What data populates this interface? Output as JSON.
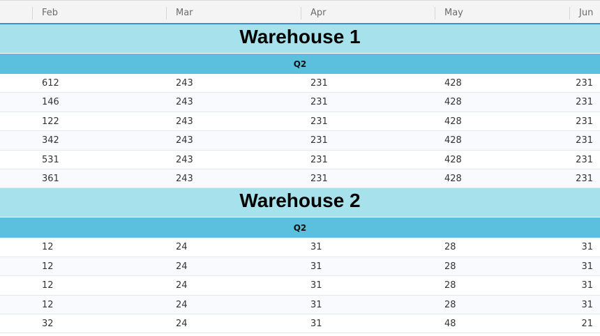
{
  "columns": [
    "Feb",
    "Mar",
    "Apr",
    "May",
    "Jun"
  ],
  "groups": [
    {
      "title": "Warehouse 1",
      "quarter": "Q2",
      "rows": [
        [
          "612",
          "243",
          "231",
          "428",
          "231"
        ],
        [
          "146",
          "243",
          "231",
          "428",
          "231"
        ],
        [
          "122",
          "243",
          "231",
          "428",
          "231"
        ],
        [
          "342",
          "243",
          "231",
          "428",
          "231"
        ],
        [
          "531",
          "243",
          "231",
          "428",
          "231"
        ],
        [
          "361",
          "243",
          "231",
          "428",
          "231"
        ]
      ]
    },
    {
      "title": "Warehouse 2",
      "quarter": "Q2",
      "rows": [
        [
          "12",
          "24",
          "31",
          "28",
          "31"
        ],
        [
          "12",
          "24",
          "31",
          "28",
          "31"
        ],
        [
          "12",
          "24",
          "31",
          "28",
          "31"
        ],
        [
          "12",
          "24",
          "31",
          "28",
          "31"
        ],
        [
          "32",
          "24",
          "31",
          "48",
          "21"
        ]
      ]
    }
  ],
  "colors": {
    "header_bg": "#f4f4f4",
    "header_underline": "#3a8fd1",
    "warehouse_bg": "#a6e1ec",
    "quarter_bg": "#5bc0de",
    "row_alt_bg": "#f8fafd"
  }
}
